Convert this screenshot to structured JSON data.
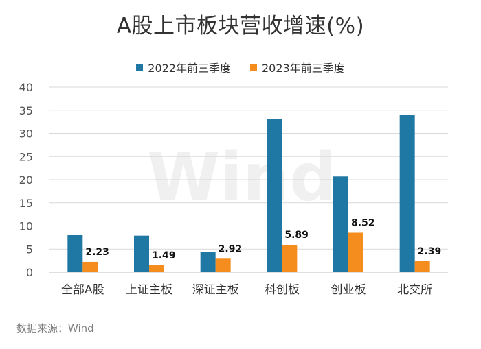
{
  "chart_data": {
    "type": "bar",
    "title": "A股上市板块营收增速(%)",
    "categories": [
      "全部A股",
      "上证主板",
      "深证主板",
      "科创板",
      "创业板",
      "北交所"
    ],
    "series": [
      {
        "name": "2022年前三季度",
        "color": "#1F77A4",
        "values": [
          8.0,
          7.9,
          4.4,
          33.1,
          20.7,
          34.0
        ]
      },
      {
        "name": "2023年前三季度",
        "color": "#F58C1E",
        "values": [
          2.23,
          1.49,
          2.92,
          5.89,
          8.52,
          2.39
        ]
      }
    ],
    "data_labels": [
      "2.23",
      "1.49",
      "2.92",
      "5.89",
      "8.52",
      "2.39"
    ],
    "ylim": [
      0,
      40
    ],
    "yticks": [
      0,
      5,
      10,
      15,
      20,
      25,
      30,
      35,
      40
    ],
    "xlabel": "",
    "ylabel": "",
    "grid": true,
    "legend": "top-center"
  },
  "source": "数据来源：Wind",
  "watermark": "Wind"
}
